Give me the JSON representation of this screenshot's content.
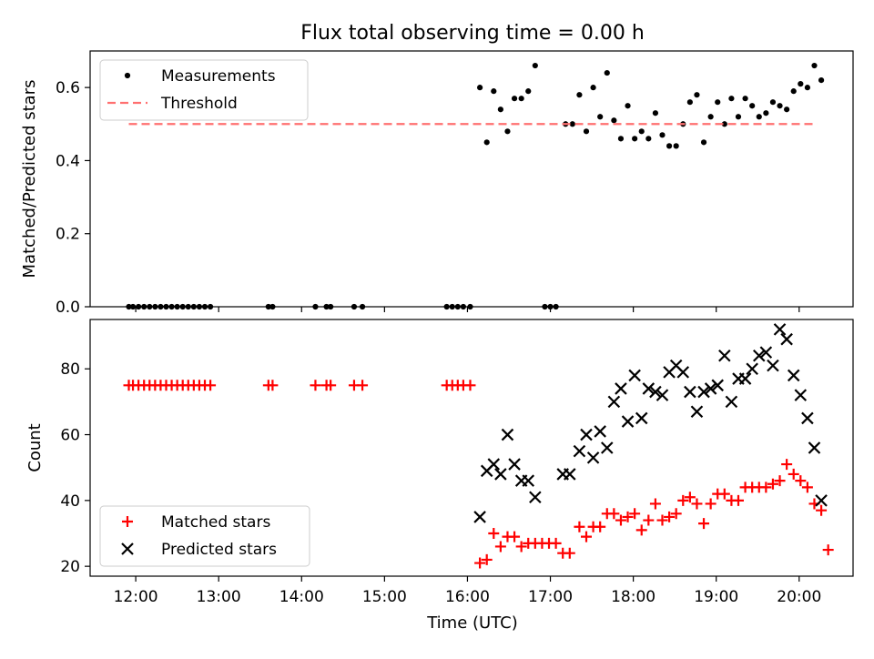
{
  "title": "Flux total observing time = 0.00 h",
  "xlabel": "Time (UTC)",
  "x_ticks": [
    "12:00",
    "13:00",
    "14:00",
    "15:00",
    "16:00",
    "17:00",
    "18:00",
    "19:00",
    "20:00"
  ],
  "colors": {
    "measurements": "#000000",
    "threshold": "#ff7070",
    "matched": "#ff0000",
    "predicted": "#000000"
  },
  "chart_data": [
    {
      "type": "scatter",
      "panel": "top",
      "ylabel": "Matched/Predicted stars",
      "ylim": [
        0,
        0.7
      ],
      "y_ticks": [
        "0.0",
        "0.2",
        "0.4",
        "0.6"
      ],
      "xlim": [
        "11:27",
        "20:39"
      ],
      "legend_position": "top-left",
      "series": [
        {
          "name": "Measurements",
          "marker": "dot",
          "points": [
            [
              "11:55",
              0
            ],
            [
              "11:58",
              0
            ],
            [
              "12:02",
              0
            ],
            [
              "12:06",
              0
            ],
            [
              "12:10",
              0
            ],
            [
              "12:14",
              0
            ],
            [
              "12:18",
              0
            ],
            [
              "12:22",
              0
            ],
            [
              "12:26",
              0
            ],
            [
              "12:30",
              0
            ],
            [
              "12:34",
              0
            ],
            [
              "12:38",
              0
            ],
            [
              "12:42",
              0
            ],
            [
              "12:46",
              0
            ],
            [
              "12:50",
              0
            ],
            [
              "12:54",
              0
            ],
            [
              "13:36",
              0
            ],
            [
              "13:39",
              0
            ],
            [
              "14:10",
              0
            ],
            [
              "14:18",
              0
            ],
            [
              "14:21",
              0
            ],
            [
              "14:38",
              0
            ],
            [
              "14:44",
              0
            ],
            [
              "15:45",
              0
            ],
            [
              "15:49",
              0
            ],
            [
              "15:53",
              0
            ],
            [
              "15:57",
              0
            ],
            [
              "16:02",
              0
            ],
            [
              "16:56",
              0
            ],
            [
              "17:00",
              0
            ],
            [
              "17:04",
              0
            ],
            [
              "16:09",
              0.6
            ],
            [
              "16:14",
              0.45
            ],
            [
              "16:19",
              0.59
            ],
            [
              "16:24",
              0.54
            ],
            [
              "16:29",
              0.48
            ],
            [
              "16:34",
              0.57
            ],
            [
              "16:39",
              0.57
            ],
            [
              "16:44",
              0.59
            ],
            [
              "16:49",
              0.66
            ],
            [
              "17:11",
              0.5
            ],
            [
              "17:16",
              0.5
            ],
            [
              "17:21",
              0.58
            ],
            [
              "17:26",
              0.48
            ],
            [
              "17:31",
              0.6
            ],
            [
              "17:36",
              0.52
            ],
            [
              "17:41",
              0.64
            ],
            [
              "17:46",
              0.51
            ],
            [
              "17:51",
              0.46
            ],
            [
              "17:56",
              0.55
            ],
            [
              "18:01",
              0.46
            ],
            [
              "18:06",
              0.48
            ],
            [
              "18:11",
              0.46
            ],
            [
              "18:16",
              0.53
            ],
            [
              "18:21",
              0.47
            ],
            [
              "18:26",
              0.44
            ],
            [
              "18:31",
              0.44
            ],
            [
              "18:36",
              0.5
            ],
            [
              "18:41",
              0.56
            ],
            [
              "18:46",
              0.58
            ],
            [
              "18:51",
              0.45
            ],
            [
              "18:56",
              0.52
            ],
            [
              "19:01",
              0.56
            ],
            [
              "19:06",
              0.5
            ],
            [
              "19:11",
              0.57
            ],
            [
              "19:16",
              0.52
            ],
            [
              "19:21",
              0.57
            ],
            [
              "19:26",
              0.55
            ],
            [
              "19:31",
              0.52
            ],
            [
              "19:36",
              0.53
            ],
            [
              "19:41",
              0.56
            ],
            [
              "19:46",
              0.55
            ],
            [
              "19:51",
              0.54
            ],
            [
              "19:56",
              0.59
            ],
            [
              "20:01",
              0.61
            ],
            [
              "20:06",
              0.6
            ],
            [
              "20:11",
              0.66
            ],
            [
              "20:16",
              0.62
            ]
          ]
        },
        {
          "name": "Threshold",
          "line": "dashed",
          "points": [
            [
              "11:55",
              0.5
            ],
            [
              "20:13",
              0.5
            ]
          ]
        }
      ]
    },
    {
      "type": "scatter",
      "panel": "bottom",
      "ylabel": "Count",
      "ylim": [
        17,
        95
      ],
      "y_ticks": [
        "20",
        "40",
        "60",
        "80"
      ],
      "xlim": [
        "11:27",
        "20:39"
      ],
      "legend_position": "bottom-left",
      "series": [
        {
          "name": "Matched stars",
          "marker": "plus",
          "points": [
            [
              "11:55",
              75
            ],
            [
              "11:58",
              75
            ],
            [
              "12:02",
              75
            ],
            [
              "12:06",
              75
            ],
            [
              "12:10",
              75
            ],
            [
              "12:14",
              75
            ],
            [
              "12:18",
              75
            ],
            [
              "12:22",
              75
            ],
            [
              "12:26",
              75
            ],
            [
              "12:30",
              75
            ],
            [
              "12:34",
              75
            ],
            [
              "12:38",
              75
            ],
            [
              "12:42",
              75
            ],
            [
              "12:46",
              75
            ],
            [
              "12:50",
              75
            ],
            [
              "12:54",
              75
            ],
            [
              "13:36",
              75
            ],
            [
              "13:39",
              75
            ],
            [
              "14:10",
              75
            ],
            [
              "14:18",
              75
            ],
            [
              "14:21",
              75
            ],
            [
              "14:38",
              75
            ],
            [
              "14:44",
              75
            ],
            [
              "15:45",
              75
            ],
            [
              "15:49",
              75
            ],
            [
              "15:53",
              75
            ],
            [
              "15:57",
              75
            ],
            [
              "16:02",
              75
            ],
            [
              "16:09",
              21
            ],
            [
              "16:14",
              22
            ],
            [
              "16:19",
              30
            ],
            [
              "16:24",
              26
            ],
            [
              "16:29",
              29
            ],
            [
              "16:34",
              29
            ],
            [
              "16:39",
              26
            ],
            [
              "16:44",
              27
            ],
            [
              "16:49",
              27
            ],
            [
              "16:54",
              27
            ],
            [
              "16:59",
              27
            ],
            [
              "17:04",
              27
            ],
            [
              "17:09",
              24
            ],
            [
              "17:14",
              24
            ],
            [
              "17:21",
              32
            ],
            [
              "17:26",
              29
            ],
            [
              "17:31",
              32
            ],
            [
              "17:36",
              32
            ],
            [
              "17:41",
              36
            ],
            [
              "17:46",
              36
            ],
            [
              "17:51",
              34
            ],
            [
              "17:56",
              35
            ],
            [
              "18:01",
              36
            ],
            [
              "18:06",
              31
            ],
            [
              "18:11",
              34
            ],
            [
              "18:16",
              39
            ],
            [
              "18:21",
              34
            ],
            [
              "18:26",
              35
            ],
            [
              "18:31",
              36
            ],
            [
              "18:36",
              40
            ],
            [
              "18:41",
              41
            ],
            [
              "18:46",
              39
            ],
            [
              "18:51",
              33
            ],
            [
              "18:56",
              39
            ],
            [
              "19:01",
              42
            ],
            [
              "19:06",
              42
            ],
            [
              "19:11",
              40
            ],
            [
              "19:16",
              40
            ],
            [
              "19:21",
              44
            ],
            [
              "19:26",
              44
            ],
            [
              "19:31",
              44
            ],
            [
              "19:36",
              44
            ],
            [
              "19:41",
              45
            ],
            [
              "19:46",
              46
            ],
            [
              "19:51",
              51
            ],
            [
              "19:56",
              48
            ],
            [
              "20:01",
              46
            ],
            [
              "20:06",
              44
            ],
            [
              "20:11",
              39
            ],
            [
              "20:16",
              37
            ],
            [
              "20:21",
              25
            ]
          ]
        },
        {
          "name": "Predicted stars",
          "marker": "x",
          "points": [
            [
              "16:09",
              35
            ],
            [
              "16:14",
              49
            ],
            [
              "16:19",
              51
            ],
            [
              "16:24",
              48
            ],
            [
              "16:29",
              60
            ],
            [
              "16:34",
              51
            ],
            [
              "16:39",
              46
            ],
            [
              "16:44",
              46
            ],
            [
              "16:49",
              41
            ],
            [
              "17:09",
              48
            ],
            [
              "17:14",
              48
            ],
            [
              "17:21",
              55
            ],
            [
              "17:26",
              60
            ],
            [
              "17:31",
              53
            ],
            [
              "17:36",
              61
            ],
            [
              "17:41",
              56
            ],
            [
              "17:46",
              70
            ],
            [
              "17:51",
              74
            ],
            [
              "17:56",
              64
            ],
            [
              "18:01",
              78
            ],
            [
              "18:06",
              65
            ],
            [
              "18:11",
              74
            ],
            [
              "18:16",
              73
            ],
            [
              "18:21",
              72
            ],
            [
              "18:26",
              79
            ],
            [
              "18:31",
              81
            ],
            [
              "18:36",
              79
            ],
            [
              "18:41",
              73
            ],
            [
              "18:46",
              67
            ],
            [
              "18:51",
              73
            ],
            [
              "18:56",
              74
            ],
            [
              "19:01",
              75
            ],
            [
              "19:06",
              84
            ],
            [
              "19:11",
              70
            ],
            [
              "19:16",
              77
            ],
            [
              "19:21",
              77
            ],
            [
              "19:26",
              80
            ],
            [
              "19:31",
              84
            ],
            [
              "19:36",
              85
            ],
            [
              "19:41",
              81
            ],
            [
              "19:46",
              92
            ],
            [
              "19:51",
              89
            ],
            [
              "19:56",
              78
            ],
            [
              "20:01",
              72
            ],
            [
              "20:06",
              65
            ],
            [
              "20:11",
              56
            ],
            [
              "20:16",
              40
            ]
          ]
        }
      ]
    }
  ]
}
